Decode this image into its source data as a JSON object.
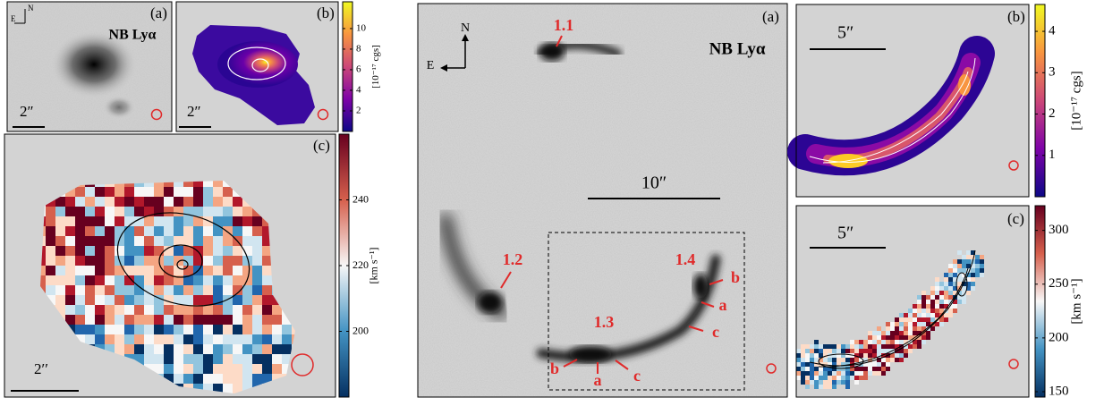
{
  "left_figure": {
    "panel_a": {
      "tag": "(a)",
      "label": "NB Lyα",
      "scale": "2″",
      "north": "N",
      "east": "E"
    },
    "panel_b": {
      "tag": "(b)",
      "scale": "2″",
      "colorbar": {
        "label": "[10⁻¹⁷ cgs]",
        "lim": [
          0,
          12.6
        ],
        "ticks": [
          2,
          4,
          6,
          8,
          10
        ]
      }
    },
    "panel_c": {
      "tag": "(c)",
      "scale": "2′′",
      "colorbar": {
        "label": "[km s⁻¹]",
        "lim": [
          180,
          260
        ],
        "ticks": [
          200,
          220,
          240
        ]
      }
    }
  },
  "right_figure": {
    "panel_a": {
      "tag": "(a)",
      "label": "NB Lyα",
      "scale": "10″",
      "north": "N",
      "east": "E",
      "images": [
        "1.1",
        "1.2",
        "1.3",
        "1.4"
      ],
      "knots": [
        "b",
        "a",
        "c",
        "b",
        "a",
        "c"
      ]
    },
    "panel_b": {
      "tag": "(b)",
      "scale": "5″",
      "colorbar": {
        "label": "[10⁻¹⁷ cgs]",
        "lim": [
          0,
          4.65
        ],
        "ticks": [
          1,
          2,
          3,
          4
        ]
      }
    },
    "panel_c": {
      "tag": "(c)",
      "scale": "5″",
      "colorbar": {
        "label": "[km s⁻¹]",
        "lim": [
          145,
          323
        ],
        "ticks": [
          150,
          200,
          250,
          300
        ]
      }
    }
  }
}
